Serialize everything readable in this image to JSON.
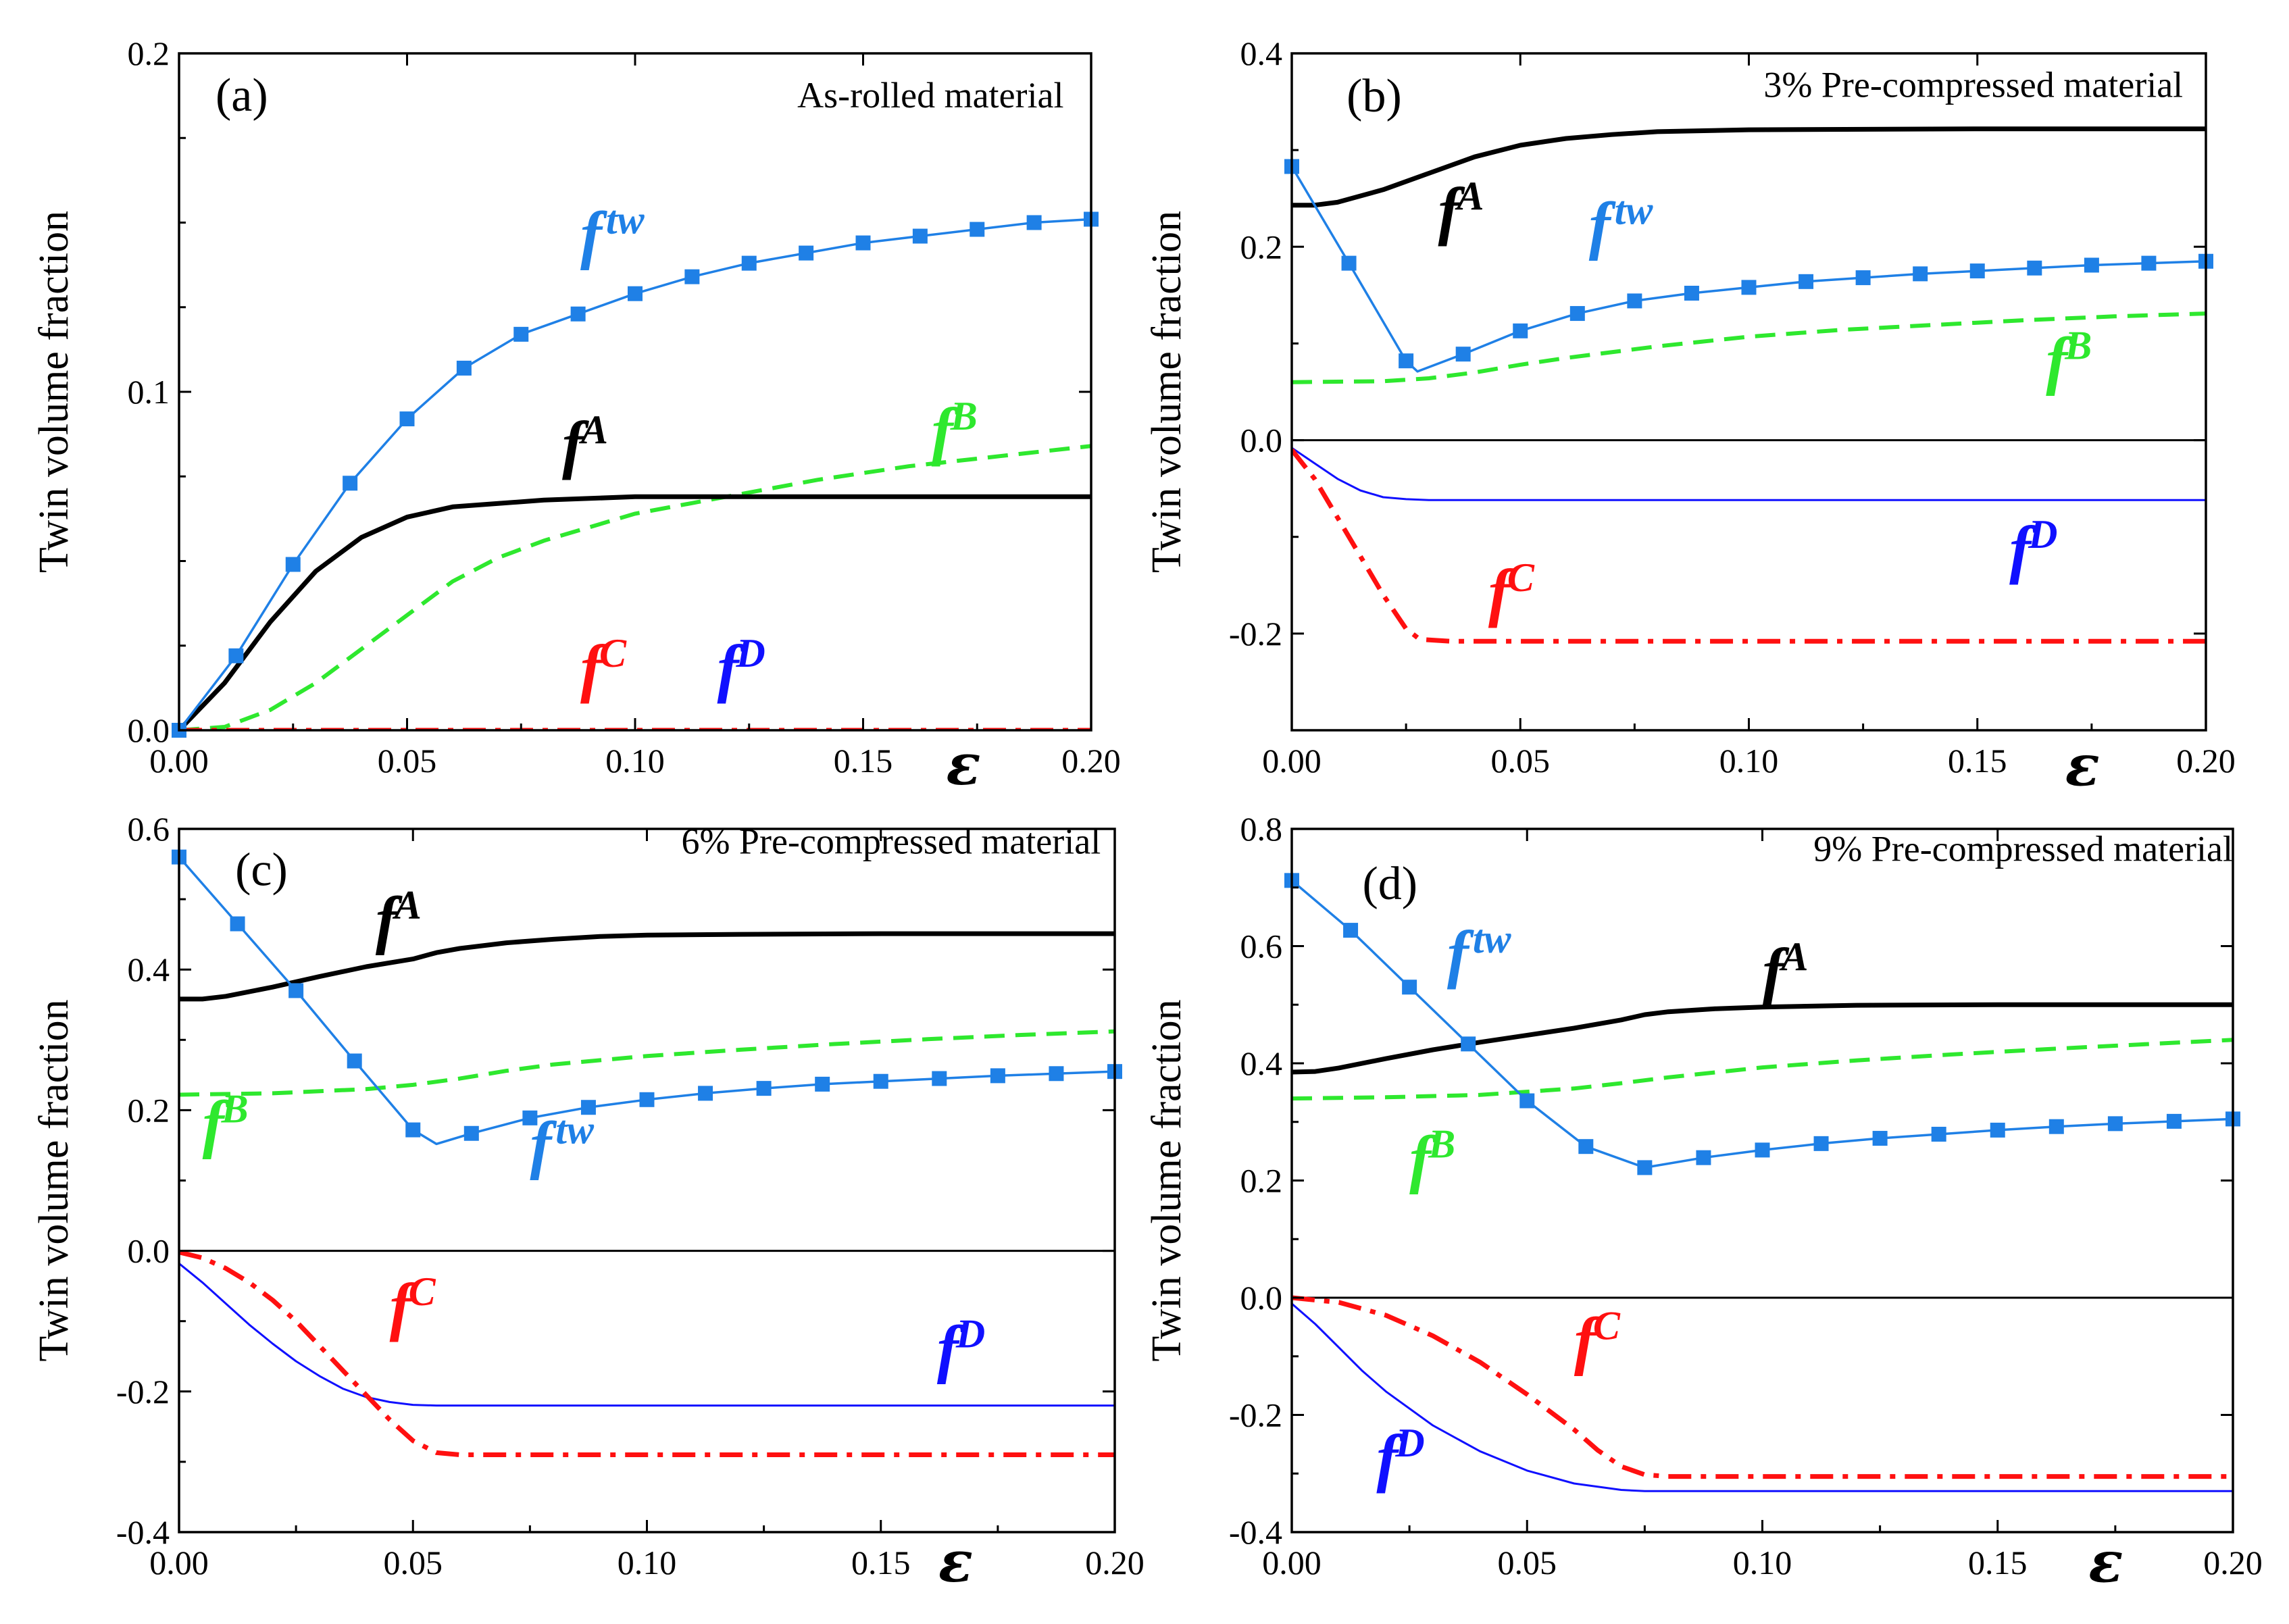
{
  "figure": {
    "ylabel": "Twin volume fraction",
    "xlabel": "ε",
    "colors": {
      "tw": "#1f80e6",
      "A": "#000000",
      "B": "#2ee82e",
      "C": "#ff1010",
      "D": "#1010ff"
    }
  },
  "chart_data": [
    {
      "type": "line",
      "panel": "(a)",
      "title": "As-rolled material",
      "xlim": [
        0,
        0.2
      ],
      "ylim": [
        0,
        0.2
      ],
      "xticks": [
        "0.00",
        "0.05",
        "0.10",
        "0.15",
        "0.20"
      ],
      "yticks": [
        "0.0",
        "0.1",
        "0.2"
      ],
      "yticks_values": [
        0,
        0.1,
        0.2
      ],
      "zero_line": false,
      "series": [
        {
          "key": "tw",
          "label": "f",
          "sup": "tw",
          "style": "marker",
          "x": [
            0,
            0.0125,
            0.025,
            0.0375,
            0.05,
            0.0625,
            0.075,
            0.0875,
            0.1,
            0.1125,
            0.125,
            0.1375,
            0.15,
            0.1625,
            0.175,
            0.1875,
            0.2
          ],
          "y": [
            0,
            0.022,
            0.049,
            0.073,
            0.092,
            0.107,
            0.117,
            0.123,
            0.129,
            0.134,
            0.138,
            0.141,
            0.144,
            0.146,
            0.148,
            0.15,
            0.151
          ]
        },
        {
          "key": "A",
          "label": "f",
          "sup": "A",
          "style": "solid-thick",
          "x": [
            0,
            0.01,
            0.02,
            0.03,
            0.04,
            0.05,
            0.06,
            0.07,
            0.08,
            0.1,
            0.15,
            0.2
          ],
          "y": [
            0,
            0.014,
            0.032,
            0.047,
            0.057,
            0.063,
            0.066,
            0.067,
            0.068,
            0.069,
            0.069,
            0.069
          ]
        },
        {
          "key": "B",
          "label": "f",
          "sup": "B",
          "style": "dash",
          "x": [
            0,
            0.01,
            0.02,
            0.03,
            0.04,
            0.05,
            0.06,
            0.07,
            0.08,
            0.1,
            0.12,
            0.14,
            0.16,
            0.18,
            0.2
          ],
          "y": [
            0,
            0.001,
            0.006,
            0.014,
            0.024,
            0.034,
            0.044,
            0.051,
            0.056,
            0.064,
            0.069,
            0.074,
            0.078,
            0.081,
            0.084
          ]
        },
        {
          "key": "C",
          "label": "f",
          "sup": "C",
          "style": "dashdot",
          "x": [
            0,
            0.2
          ],
          "y": [
            0,
            0
          ]
        },
        {
          "key": "D",
          "label": "f",
          "sup": "D",
          "style": "solid-thin",
          "x": [
            0,
            0.2
          ],
          "y": [
            0,
            0
          ]
        }
      ]
    },
    {
      "type": "line",
      "panel": "(b)",
      "title": "3% Pre-compressed material",
      "xlim": [
        0,
        0.2
      ],
      "ylim": [
        -0.3,
        0.4
      ],
      "xticks": [
        "0.00",
        "0.05",
        "0.10",
        "0.15",
        "0.20"
      ],
      "yticks": [
        "-0.2",
        "0.0",
        "0.2",
        "0.4"
      ],
      "yticks_values": [
        -0.2,
        0,
        0.2,
        0.4
      ],
      "zero_line": true,
      "series": [
        {
          "key": "tw",
          "label": "f",
          "sup": "tw",
          "style": "marker",
          "x": [
            0,
            0.0125,
            0.025,
            0.0275,
            0.0375,
            0.05,
            0.0625,
            0.075,
            0.0875,
            0.1,
            0.1125,
            0.125,
            0.1375,
            0.15,
            0.1625,
            0.175,
            0.1875,
            0.2
          ],
          "y": [
            0.283,
            0.183,
            0.082,
            0.071,
            0.089,
            0.113,
            0.131,
            0.144,
            0.152,
            0.158,
            0.164,
            0.168,
            0.172,
            0.175,
            0.178,
            0.181,
            0.183,
            0.185
          ]
        },
        {
          "key": "A",
          "label": "f",
          "sup": "A",
          "style": "solid-thick",
          "x": [
            0,
            0.005,
            0.01,
            0.02,
            0.03,
            0.04,
            0.05,
            0.06,
            0.07,
            0.08,
            0.1,
            0.15,
            0.2
          ],
          "y": [
            0.243,
            0.243,
            0.246,
            0.259,
            0.276,
            0.293,
            0.305,
            0.312,
            0.316,
            0.319,
            0.321,
            0.322,
            0.322
          ]
        },
        {
          "key": "B",
          "label": "f",
          "sup": "B",
          "style": "dash",
          "x": [
            0,
            0.02,
            0.03,
            0.04,
            0.05,
            0.06,
            0.08,
            0.1,
            0.12,
            0.14,
            0.16,
            0.18,
            0.2
          ],
          "y": [
            0.06,
            0.061,
            0.064,
            0.07,
            0.078,
            0.085,
            0.097,
            0.107,
            0.114,
            0.119,
            0.124,
            0.128,
            0.131
          ]
        },
        {
          "key": "C",
          "label": "f",
          "sup": "C",
          "style": "dashdot",
          "x": [
            0,
            0.005,
            0.01,
            0.015,
            0.02,
            0.025,
            0.028,
            0.035,
            0.05,
            0.1,
            0.2
          ],
          "y": [
            -0.01,
            -0.04,
            -0.08,
            -0.12,
            -0.16,
            -0.195,
            -0.206,
            -0.208,
            -0.208,
            -0.208,
            -0.208
          ]
        },
        {
          "key": "D",
          "label": "f",
          "sup": "D",
          "style": "solid-thin",
          "x": [
            0,
            0.005,
            0.01,
            0.015,
            0.02,
            0.025,
            0.03,
            0.05,
            0.1,
            0.2
          ],
          "y": [
            -0.008,
            -0.024,
            -0.04,
            -0.052,
            -0.059,
            -0.061,
            -0.062,
            -0.062,
            -0.062,
            -0.062
          ]
        }
      ]
    },
    {
      "type": "line",
      "panel": "(c)",
      "title": "6% Pre-compressed material",
      "xlim": [
        0,
        0.2
      ],
      "ylim": [
        -0.4,
        0.6
      ],
      "xticks": [
        "0.00",
        "0.05",
        "0.10",
        "0.15",
        "0.20"
      ],
      "yticks": [
        "-0.4",
        "-0.2",
        "0.0",
        "0.2",
        "0.4",
        "0.6"
      ],
      "yticks_values": [
        -0.4,
        -0.2,
        0,
        0.2,
        0.4,
        0.6
      ],
      "zero_line": true,
      "series": [
        {
          "key": "tw",
          "label": "f",
          "sup": "tw",
          "style": "marker",
          "x": [
            0,
            0.0125,
            0.025,
            0.0375,
            0.05,
            0.055,
            0.0625,
            0.075,
            0.0875,
            0.1,
            0.1125,
            0.125,
            0.1375,
            0.15,
            0.1625,
            0.175,
            0.1875,
            0.2
          ],
          "y": [
            0.56,
            0.465,
            0.37,
            0.27,
            0.172,
            0.152,
            0.167,
            0.189,
            0.204,
            0.215,
            0.224,
            0.231,
            0.237,
            0.241,
            0.245,
            0.249,
            0.252,
            0.255
          ]
        },
        {
          "key": "A",
          "label": "f",
          "sup": "A",
          "style": "solid-thick",
          "x": [
            0,
            0.005,
            0.01,
            0.02,
            0.03,
            0.04,
            0.05,
            0.055,
            0.06,
            0.07,
            0.08,
            0.09,
            0.1,
            0.12,
            0.15,
            0.2
          ],
          "y": [
            0.358,
            0.358,
            0.362,
            0.375,
            0.39,
            0.404,
            0.415,
            0.424,
            0.43,
            0.438,
            0.443,
            0.447,
            0.449,
            0.45,
            0.451,
            0.451
          ]
        },
        {
          "key": "B",
          "label": "f",
          "sup": "B",
          "style": "dash",
          "x": [
            0,
            0.02,
            0.04,
            0.05,
            0.06,
            0.07,
            0.08,
            0.1,
            0.12,
            0.14,
            0.16,
            0.18,
            0.2
          ],
          "y": [
            0.222,
            0.224,
            0.23,
            0.236,
            0.245,
            0.256,
            0.265,
            0.277,
            0.286,
            0.294,
            0.301,
            0.307,
            0.312
          ]
        },
        {
          "key": "C",
          "label": "f",
          "sup": "C",
          "style": "dashdot",
          "x": [
            0,
            0.005,
            0.01,
            0.015,
            0.02,
            0.025,
            0.03,
            0.035,
            0.04,
            0.045,
            0.05,
            0.055,
            0.06,
            0.1,
            0.2
          ],
          "y": [
            -0.002,
            -0.01,
            -0.025,
            -0.045,
            -0.07,
            -0.1,
            -0.135,
            -0.17,
            -0.205,
            -0.24,
            -0.27,
            -0.287,
            -0.29,
            -0.29,
            -0.29
          ]
        },
        {
          "key": "D",
          "label": "f",
          "sup": "D",
          "style": "solid-thin",
          "x": [
            0,
            0.005,
            0.01,
            0.015,
            0.02,
            0.025,
            0.03,
            0.035,
            0.04,
            0.045,
            0.05,
            0.055,
            0.06,
            0.1,
            0.2
          ],
          "y": [
            -0.018,
            -0.045,
            -0.075,
            -0.105,
            -0.132,
            -0.157,
            -0.178,
            -0.196,
            -0.208,
            -0.215,
            -0.219,
            -0.22,
            -0.22,
            -0.22,
            -0.22
          ]
        }
      ]
    },
    {
      "type": "line",
      "panel": "(d)",
      "title": "9% Pre-compressed material",
      "xlim": [
        0,
        0.2
      ],
      "ylim": [
        -0.4,
        0.8
      ],
      "xticks": [
        "0.00",
        "0.05",
        "0.10",
        "0.15",
        "0.20"
      ],
      "yticks": [
        "-0.4",
        "-0.2",
        "0.0",
        "0.2",
        "0.4",
        "0.6",
        "0.8"
      ],
      "yticks_values": [
        -0.4,
        -0.2,
        0,
        0.2,
        0.4,
        0.6,
        0.8
      ],
      "zero_line": true,
      "series": [
        {
          "key": "tw",
          "label": "f",
          "sup": "tw",
          "style": "marker",
          "x": [
            0,
            0.0125,
            0.025,
            0.0375,
            0.05,
            0.0625,
            0.075,
            0.0875,
            0.1,
            0.1125,
            0.125,
            0.1375,
            0.15,
            0.1625,
            0.175,
            0.1875,
            0.2
          ],
          "y": [
            0.712,
            0.627,
            0.53,
            0.433,
            0.336,
            0.258,
            0.222,
            0.239,
            0.252,
            0.263,
            0.272,
            0.279,
            0.286,
            0.292,
            0.297,
            0.301,
            0.305
          ]
        },
        {
          "key": "A",
          "label": "f",
          "sup": "A",
          "style": "solid-thick",
          "x": [
            0,
            0.005,
            0.01,
            0.02,
            0.03,
            0.04,
            0.05,
            0.06,
            0.07,
            0.075,
            0.08,
            0.09,
            0.1,
            0.12,
            0.15,
            0.2
          ],
          "y": [
            0.385,
            0.386,
            0.392,
            0.408,
            0.423,
            0.436,
            0.448,
            0.46,
            0.474,
            0.483,
            0.488,
            0.493,
            0.496,
            0.499,
            0.5,
            0.5
          ]
        },
        {
          "key": "B",
          "label": "f",
          "sup": "B",
          "style": "dash",
          "x": [
            0,
            0.02,
            0.04,
            0.06,
            0.07,
            0.08,
            0.1,
            0.12,
            0.14,
            0.16,
            0.18,
            0.2
          ],
          "y": [
            0.34,
            0.342,
            0.346,
            0.357,
            0.366,
            0.376,
            0.393,
            0.405,
            0.415,
            0.424,
            0.432,
            0.44
          ]
        },
        {
          "key": "C",
          "label": "f",
          "sup": "C",
          "style": "dashdot",
          "x": [
            0,
            0.01,
            0.02,
            0.03,
            0.04,
            0.05,
            0.06,
            0.065,
            0.07,
            0.075,
            0.08,
            0.1,
            0.2
          ],
          "y": [
            0,
            -0.008,
            -0.03,
            -0.065,
            -0.11,
            -0.165,
            -0.225,
            -0.26,
            -0.288,
            -0.302,
            -0.305,
            -0.305,
            -0.305
          ]
        },
        {
          "key": "D",
          "label": "f",
          "sup": "D",
          "style": "solid-thin",
          "x": [
            0,
            0.005,
            0.01,
            0.015,
            0.02,
            0.03,
            0.04,
            0.05,
            0.06,
            0.07,
            0.075,
            0.08,
            0.1,
            0.2
          ],
          "y": [
            -0.01,
            -0.045,
            -0.085,
            -0.125,
            -0.16,
            -0.218,
            -0.262,
            -0.295,
            -0.317,
            -0.328,
            -0.33,
            -0.33,
            -0.33,
            -0.33
          ]
        }
      ]
    }
  ]
}
